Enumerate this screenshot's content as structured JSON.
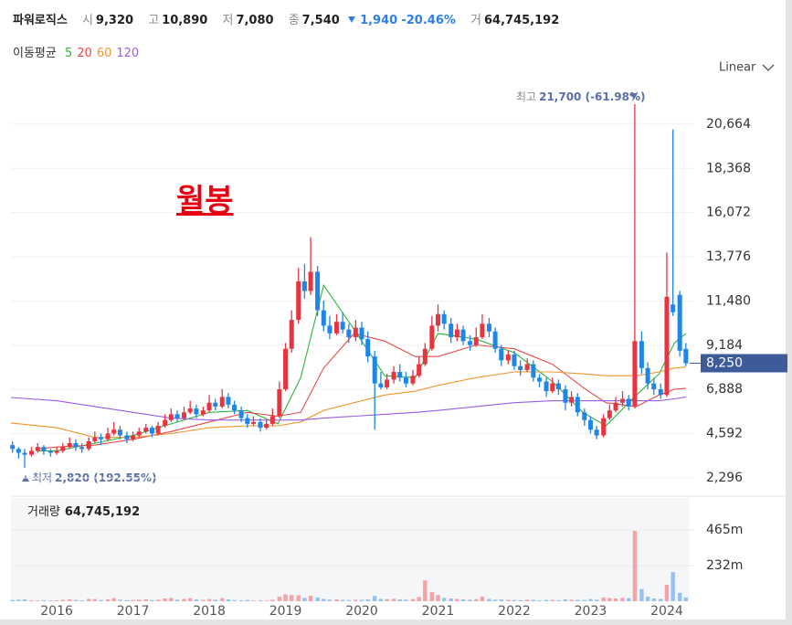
{
  "chart_data": {
    "type": "candlestick",
    "title": "파워로직스",
    "summary": [
      {
        "key": "시",
        "text": "9,320"
      },
      {
        "key": "고",
        "text": "10,890"
      },
      {
        "key": "저",
        "text": "7,080"
      },
      {
        "key": "종",
        "text": "7,540"
      }
    ],
    "change": {
      "amount": "1,940",
      "percent": "-20.46%"
    },
    "volume_key": "거",
    "ma_title": "이동평균",
    "annotation": "월봉",
    "scale_label": "Linear",
    "up_color": "#e8343f",
    "down_color": "#1f86e6",
    "xlim": [
      2015.4,
      2024.3
    ],
    "xticks": [
      2016,
      2017,
      2018,
      2019,
      2020,
      2021,
      2022,
      2023,
      2024
    ],
    "ylim": [
      1490,
      26400
    ],
    "yticks": [
      {
        "value": 2296,
        "label": "2,296"
      },
      {
        "value": 4592,
        "label": "4,592"
      },
      {
        "value": 6888,
        "label": "6,888"
      },
      {
        "value": 9184,
        "label": "9,184"
      },
      {
        "value": 11480,
        "label": "11,480"
      },
      {
        "value": 13776,
        "label": "13,776"
      },
      {
        "value": 16072,
        "label": "16,072"
      },
      {
        "value": 18368,
        "label": "18,368"
      },
      {
        "value": 20664,
        "label": "20,664"
      }
    ],
    "grid": true,
    "high_note": {
      "prefix": "최고",
      "text": "21,700 (-61.98%)"
    },
    "low_note": {
      "prefix": "최저",
      "text": "2,820 (192.55%)"
    },
    "last_price": {
      "value": 8250,
      "label": "8,250"
    },
    "x": [
      2015.42,
      2015.5,
      2015.58,
      2015.67,
      2015.75,
      2015.83,
      2015.92,
      2016,
      2016.08,
      2016.17,
      2016.25,
      2016.33,
      2016.42,
      2016.5,
      2016.58,
      2016.67,
      2016.75,
      2016.83,
      2016.92,
      2017,
      2017.08,
      2017.17,
      2017.25,
      2017.33,
      2017.42,
      2017.5,
      2017.58,
      2017.67,
      2017.75,
      2017.83,
      2017.92,
      2018,
      2018.08,
      2018.17,
      2018.25,
      2018.33,
      2018.42,
      2018.5,
      2018.58,
      2018.67,
      2018.75,
      2018.83,
      2018.92,
      2019,
      2019.08,
      2019.17,
      2019.25,
      2019.33,
      2019.42,
      2019.5,
      2019.58,
      2019.67,
      2019.75,
      2019.83,
      2019.92,
      2020,
      2020.08,
      2020.17,
      2020.25,
      2020.33,
      2020.42,
      2020.5,
      2020.58,
      2020.67,
      2020.75,
      2020.83,
      2020.92,
      2021,
      2021.08,
      2021.17,
      2021.25,
      2021.33,
      2021.42,
      2021.5,
      2021.58,
      2021.67,
      2021.75,
      2021.83,
      2021.92,
      2022,
      2022.08,
      2022.17,
      2022.25,
      2022.33,
      2022.42,
      2022.5,
      2022.58,
      2022.67,
      2022.75,
      2022.83,
      2022.92,
      2023,
      2023.08,
      2023.17,
      2023.25,
      2023.33,
      2023.42,
      2023.5,
      2023.58,
      2023.67,
      2023.75,
      2023.83,
      2023.92,
      2024,
      2024.08,
      2024.17,
      2024.25
    ],
    "candles": [
      [
        4000,
        4200,
        3600,
        3800
      ],
      [
        3800,
        3900,
        3300,
        3600
      ],
      [
        3600,
        3800,
        2820,
        3500
      ],
      [
        3500,
        3900,
        3400,
        3700
      ],
      [
        3700,
        4100,
        3600,
        3900
      ],
      [
        3900,
        4000,
        3500,
        3700
      ],
      [
        3700,
        3800,
        3400,
        3600
      ],
      [
        3600,
        3900,
        3500,
        3700
      ],
      [
        3700,
        4100,
        3600,
        3900
      ],
      [
        3900,
        4400,
        3800,
        4100
      ],
      [
        4100,
        4300,
        3700,
        3900
      ],
      [
        3900,
        4100,
        3600,
        3800
      ],
      [
        3800,
        4400,
        3700,
        4200
      ],
      [
        4200,
        4700,
        4100,
        4400
      ],
      [
        4400,
        4600,
        4000,
        4300
      ],
      [
        4300,
        4900,
        4200,
        4600
      ],
      [
        4600,
        5200,
        4500,
        4800
      ],
      [
        4800,
        5000,
        4300,
        4500
      ],
      [
        4500,
        4700,
        4100,
        4300
      ],
      [
        4300,
        4700,
        4200,
        4500
      ],
      [
        4500,
        4900,
        4400,
        4700
      ],
      [
        4700,
        5100,
        4600,
        4900
      ],
      [
        4900,
        5000,
        4400,
        4600
      ],
      [
        4600,
        5200,
        4500,
        5000
      ],
      [
        5000,
        5600,
        4900,
        5300
      ],
      [
        5300,
        5900,
        5200,
        5600
      ],
      [
        5600,
        5800,
        5200,
        5400
      ],
      [
        5400,
        6000,
        5300,
        5700
      ],
      [
        5700,
        6300,
        5600,
        5900
      ],
      [
        5900,
        6100,
        5400,
        5600
      ],
      [
        5600,
        6000,
        5500,
        5800
      ],
      [
        5800,
        6600,
        5700,
        6200
      ],
      [
        6200,
        6400,
        5800,
        6000
      ],
      [
        6000,
        6900,
        5900,
        6500
      ],
      [
        6500,
        6700,
        5900,
        6100
      ],
      [
        6100,
        6300,
        5600,
        5800
      ],
      [
        5800,
        6000,
        5200,
        5400
      ],
      [
        5400,
        5600,
        4900,
        5100
      ],
      [
        5100,
        5500,
        5000,
        5200
      ],
      [
        5200,
        5400,
        4700,
        4900
      ],
      [
        4900,
        5300,
        4800,
        5100
      ],
      [
        5100,
        5900,
        5000,
        5500
      ],
      [
        5500,
        7300,
        5400,
        6900
      ],
      [
        6900,
        9300,
        6800,
        9000
      ],
      [
        9000,
        11000,
        8800,
        10500
      ],
      [
        10500,
        13200,
        10300,
        12500
      ],
      [
        12500,
        13400,
        11600,
        12000
      ],
      [
        12000,
        14800,
        11800,
        13000
      ],
      [
        13000,
        13300,
        10700,
        11000
      ],
      [
        11000,
        11500,
        9900,
        10200
      ],
      [
        10200,
        10700,
        9500,
        9800
      ],
      [
        9800,
        10800,
        9700,
        10400
      ],
      [
        10400,
        10900,
        9800,
        10000
      ],
      [
        10000,
        10300,
        9300,
        9600
      ],
      [
        9600,
        10500,
        9400,
        10100
      ],
      [
        10100,
        10400,
        9200,
        9500
      ],
      [
        9500,
        9900,
        8300,
        8600
      ],
      [
        8600,
        8900,
        4800,
        7200
      ],
      [
        7200,
        7800,
        6900,
        7000
      ],
      [
        7000,
        7700,
        6900,
        7400
      ],
      [
        7400,
        8100,
        7200,
        7800
      ],
      [
        7800,
        8200,
        7300,
        7500
      ],
      [
        7500,
        7800,
        7000,
        7200
      ],
      [
        7200,
        7900,
        7100,
        7600
      ],
      [
        7600,
        8600,
        7500,
        8200
      ],
      [
        8200,
        9300,
        8100,
        9000
      ],
      [
        9000,
        10700,
        8900,
        10200
      ],
      [
        10200,
        11300,
        9900,
        10800
      ],
      [
        10800,
        11000,
        10000,
        10300
      ],
      [
        10300,
        10600,
        9300,
        9600
      ],
      [
        9600,
        10300,
        9400,
        10000
      ],
      [
        10000,
        10200,
        9200,
        9400
      ],
      [
        9400,
        9700,
        8900,
        9200
      ],
      [
        9200,
        10100,
        9100,
        9600
      ],
      [
        9600,
        10800,
        9500,
        10300
      ],
      [
        10300,
        10600,
        9600,
        9900
      ],
      [
        9900,
        10100,
        8800,
        9000
      ],
      [
        9000,
        9200,
        8100,
        8400
      ],
      [
        8400,
        8900,
        8200,
        8700
      ],
      [
        8700,
        8900,
        7900,
        8100
      ],
      [
        8100,
        8400,
        7600,
        7900
      ],
      [
        7900,
        8500,
        7800,
        8200
      ],
      [
        8200,
        8400,
        7300,
        7500
      ],
      [
        7500,
        7700,
        7000,
        7300
      ],
      [
        7300,
        7500,
        6500,
        6800
      ],
      [
        6800,
        7500,
        6700,
        7200
      ],
      [
        7200,
        7400,
        6600,
        6900
      ],
      [
        6900,
        7100,
        5800,
        6200
      ],
      [
        6200,
        6800,
        6000,
        6500
      ],
      [
        6500,
        6700,
        5500,
        5700
      ],
      [
        5700,
        5900,
        5000,
        5300
      ],
      [
        5300,
        5500,
        4600,
        4800
      ],
      [
        4800,
        5000,
        4300,
        4500
      ],
      [
        4500,
        5600,
        4400,
        5400
      ],
      [
        5400,
        6100,
        5300,
        5800
      ],
      [
        5800,
        6500,
        5700,
        6200
      ],
      [
        6200,
        6800,
        6000,
        6400
      ],
      [
        6400,
        6600,
        5800,
        6000
      ],
      [
        6000,
        21700,
        5900,
        9400
      ],
      [
        9400,
        9900,
        7700,
        8000
      ],
      [
        8000,
        8300,
        6900,
        7200
      ],
      [
        7200,
        7500,
        6600,
        6900
      ],
      [
        6900,
        7200,
        6400,
        6600
      ],
      [
        6600,
        14000,
        6500,
        11700
      ],
      [
        11300,
        20400,
        10700,
        10900
      ],
      [
        11800,
        12000,
        8600,
        8900
      ],
      [
        9000,
        9300,
        8100,
        8250
      ]
    ],
    "moving_averages": [
      {
        "name": "5",
        "color": "#2fb53a",
        "x": [
          2015.75,
          2016,
          2016.5,
          2017,
          2017.5,
          2018,
          2018.5,
          2018.9,
          2019.2,
          2019.5,
          2019.9,
          2020.3,
          2020.7,
          2021,
          2021.5,
          2022,
          2022.5,
          2022.9,
          2023.2,
          2023.6,
          2023.9,
          2024.1,
          2024.25
        ],
        "values": [
          3700,
          3700,
          4100,
          4500,
          5100,
          5700,
          5800,
          5100,
          7500,
          12300,
          10000,
          7600,
          7500,
          9800,
          9500,
          8800,
          7300,
          5700,
          5000,
          6600,
          7700,
          9300,
          9800
        ]
      },
      {
        "name": "20",
        "color": "#e84a4a",
        "x": [
          2015.75,
          2016,
          2016.5,
          2017,
          2017.5,
          2018,
          2018.5,
          2018.9,
          2019.2,
          2019.5,
          2019.9,
          2020.3,
          2020.7,
          2021,
          2021.5,
          2022,
          2022.5,
          2022.9,
          2023.2,
          2023.6,
          2023.9,
          2024.1,
          2024.25
        ],
        "values": [
          3800,
          3900,
          4000,
          4300,
          4700,
          5200,
          5700,
          5500,
          5700,
          8000,
          9800,
          9400,
          8600,
          8600,
          9200,
          9000,
          8200,
          7000,
          6200,
          6000,
          6600,
          6900,
          6950
        ]
      },
      {
        "name": "60",
        "color": "#f0962e",
        "x": [
          2015.4,
          2016,
          2016.5,
          2017,
          2017.5,
          2018,
          2018.5,
          2018.9,
          2019.2,
          2019.5,
          2019.9,
          2020.3,
          2020.7,
          2021,
          2021.5,
          2022,
          2022.5,
          2022.9,
          2023.2,
          2023.6,
          2023.9,
          2024.1,
          2024.25
        ],
        "values": [
          5150,
          4900,
          4400,
          4400,
          4600,
          4900,
          5000,
          5000,
          5200,
          5800,
          6200,
          6600,
          6800,
          7100,
          7500,
          7800,
          7800,
          7700,
          7600,
          7600,
          7800,
          8000,
          8050
        ]
      },
      {
        "name": "120",
        "color": "#9b5de5",
        "x": [
          2015.4,
          2016,
          2016.5,
          2017,
          2017.5,
          2018,
          2018.5,
          2018.9,
          2019.2,
          2019.5,
          2019.9,
          2020.3,
          2020.7,
          2021,
          2021.5,
          2022,
          2022.5,
          2022.9,
          2023.2,
          2023.6,
          2023.9,
          2024.1,
          2024.25
        ],
        "values": [
          6470,
          6300,
          6000,
          5700,
          5400,
          5300,
          5300,
          5300,
          5300,
          5400,
          5500,
          5600,
          5700,
          5800,
          6000,
          6200,
          6300,
          6300,
          6300,
          6300,
          6300,
          6400,
          6500
        ]
      }
    ],
    "volume": {
      "title": "거래량",
      "total": "64,745,192",
      "up_color": "#f4a3a6",
      "down_color": "#97c1ee",
      "ylim": [
        0,
        674
      ],
      "yticks": [
        {
          "value": 232,
          "label": "232m"
        },
        {
          "value": 465,
          "label": "465m"
        }
      ],
      "values": [
        8,
        10,
        12,
        6,
        5,
        7,
        5,
        6,
        9,
        12,
        8,
        6,
        15,
        14,
        8,
        12,
        20,
        10,
        7,
        8,
        10,
        12,
        8,
        10,
        18,
        22,
        10,
        15,
        20,
        12,
        9,
        14,
        10,
        20,
        12,
        8,
        6,
        8,
        5,
        6,
        5,
        10,
        30,
        45,
        40,
        38,
        22,
        35,
        25,
        15,
        10,
        12,
        9,
        8,
        10,
        9,
        12,
        35,
        15,
        14,
        16,
        12,
        10,
        14,
        28,
        137,
        60,
        40,
        22,
        18,
        15,
        12,
        10,
        14,
        30,
        15,
        10,
        12,
        9,
        8,
        7,
        10,
        9,
        6,
        8,
        9,
        7,
        12,
        10,
        9,
        8,
        14,
        10,
        25,
        20,
        18,
        22,
        20,
        459,
        80,
        30,
        18,
        15,
        107,
        190,
        55,
        25
      ]
    }
  }
}
